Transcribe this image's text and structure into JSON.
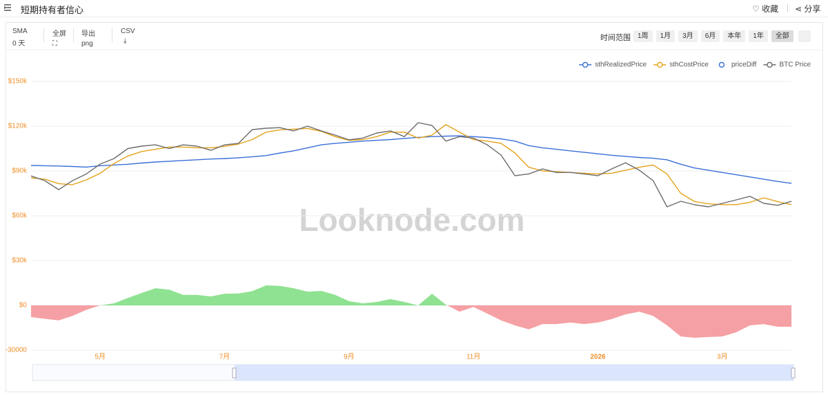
{
  "header": {
    "title": "短期持有者信心",
    "favorite": "收藏",
    "share": "分享"
  },
  "toolbar": {
    "sma_label": "SMA",
    "sma_value": "0 天",
    "fullscreen": "全屏",
    "export_label": "导出",
    "export_value": "png",
    "csv": "CSV",
    "range_label": "时间范围",
    "ranges": [
      "1周",
      "1月",
      "3月",
      "6月",
      "本年",
      "1年",
      "全部"
    ]
  },
  "chart_data": {
    "type": "line",
    "watermark": "Looknode.com",
    "categories": [
      null,
      null,
      null,
      null,
      null,
      "5月",
      null,
      null,
      null,
      null,
      null,
      null,
      null,
      null,
      "7月",
      null,
      null,
      null,
      null,
      null,
      null,
      null,
      null,
      "9月",
      null,
      null,
      null,
      null,
      null,
      null,
      null,
      null,
      "11月",
      null,
      null,
      null,
      null,
      null,
      null,
      null,
      null,
      "2026",
      null,
      null,
      null,
      null,
      null,
      null,
      null,
      null,
      "3月",
      null,
      null,
      null,
      null,
      null
    ],
    "ylim": [
      -30000,
      150000
    ],
    "yticks": [
      -30000,
      {
        "value": 0,
        "label": "$0"
      },
      {
        "value": 30000,
        "label": "$30k"
      },
      {
        "value": 60000,
        "label": "$60k"
      },
      {
        "value": 90000,
        "label": "$90k"
      },
      {
        "value": 120000,
        "label": "$120k"
      },
      {
        "value": 150000,
        "label": "$150k"
      }
    ],
    "grid": true,
    "legend": "top-right",
    "series": [
      {
        "name": "sthRealizedPrice",
        "color": "#3a6fd9",
        "values": [
          93700,
          93500,
          93300,
          93000,
          92600,
          93500,
          94000,
          94500,
          95300,
          96000,
          96500,
          97000,
          97500,
          98000,
          98300,
          98800,
          99500,
          100300,
          102000,
          103500,
          105500,
          107500,
          108500,
          109200,
          110000,
          110500,
          111000,
          111800,
          112500,
          113000,
          113300,
          113500,
          113000,
          112400,
          111500,
          110000,
          107000,
          105500,
          104500,
          103500,
          102500,
          101500,
          100500,
          99800,
          99000,
          98500,
          97500,
          94500,
          92000,
          90500,
          89000,
          87500,
          86000,
          84500,
          83000,
          81700
        ]
      },
      {
        "name": "sthCostPrice",
        "color": "#e3a21a",
        "values": [
          85400,
          84500,
          81500,
          80800,
          84000,
          88500,
          95000,
          100000,
          103000,
          104500,
          106000,
          106000,
          105500,
          105500,
          106500,
          108000,
          111000,
          116000,
          117500,
          118000,
          118500,
          116500,
          113000,
          110500,
          111000,
          113000,
          116000,
          116000,
          112000,
          114000,
          121000,
          116000,
          111000,
          110000,
          108500,
          102000,
          92500,
          90000,
          89500,
          89000,
          88500,
          88000,
          88500,
          90500,
          92500,
          94000,
          88000,
          75000,
          69500,
          68000,
          67500,
          67500,
          69000,
          72000,
          69500,
          67400
        ]
      },
      {
        "name": "priceDiff",
        "type": "area",
        "color": "#3a6fd9",
        "fill_positive": "#8fe291",
        "fill_negative": "#f5a0a4",
        "values": [
          -7800,
          -9000,
          -10000,
          -7000,
          -3000,
          0,
          1400,
          5000,
          8300,
          11500,
          10500,
          7000,
          7000,
          6000,
          7800,
          8000,
          9500,
          13400,
          13000,
          11500,
          9200,
          9700,
          7000,
          2800,
          1400,
          2300,
          4200,
          2300,
          0,
          7800,
          500,
          -4200,
          -1000,
          -5500,
          -10000,
          -13400,
          -16000,
          -12500,
          -12500,
          -11500,
          -12500,
          -11500,
          -9200,
          -6000,
          -4200,
          -7000,
          -13400,
          -20800,
          -21700,
          -21200,
          -20800,
          -18000,
          -13400,
          -12500,
          -14300,
          -14300
        ]
      },
      {
        "name": "BTC Price",
        "color": "#6b6b6b",
        "values": [
          86700,
          83500,
          77500,
          83500,
          88000,
          94600,
          98300,
          105000,
          106600,
          107500,
          105000,
          107500,
          106600,
          103800,
          107500,
          108400,
          117700,
          118600,
          119000,
          116800,
          120000,
          116800,
          114000,
          110800,
          112000,
          115400,
          116800,
          113000,
          122300,
          120500,
          110000,
          113000,
          112000,
          107500,
          100600,
          86800,
          88000,
          91400,
          89000,
          89000,
          88000,
          86800,
          91400,
          95500,
          90500,
          83500,
          66000,
          69700,
          67400,
          66000,
          68300,
          70600,
          73000,
          68300,
          67000,
          69700
        ]
      }
    ]
  }
}
